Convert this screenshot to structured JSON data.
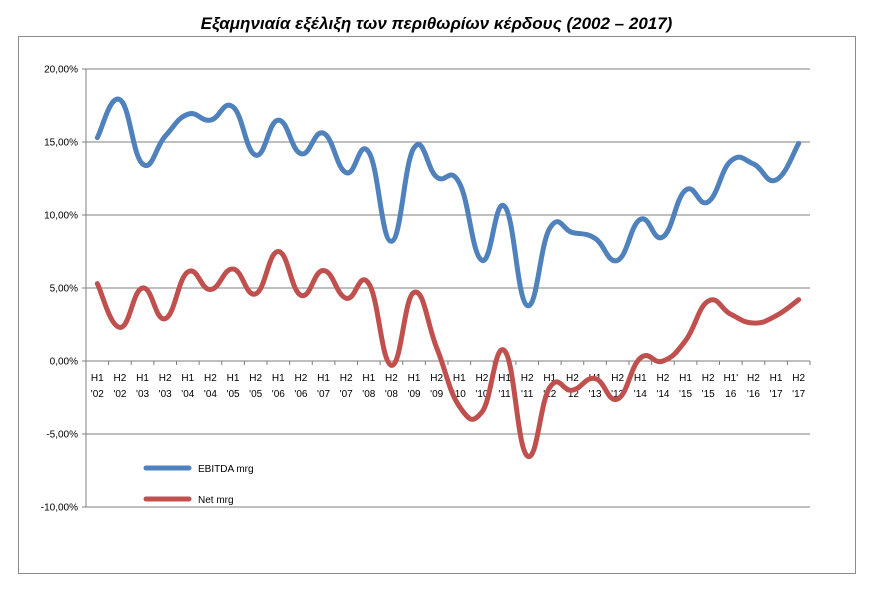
{
  "chart_data": {
    "type": "line",
    "title": "Εξαμηνιαία εξέλιξη των περιθωρίων κέρδους (2002 – 2017)",
    "xlabel": "",
    "ylabel": "",
    "ylim": [
      -10,
      20
    ],
    "yticks": [
      {
        "value": 20,
        "label": "20,00%"
      },
      {
        "value": 15,
        "label": "15,00%"
      },
      {
        "value": 10,
        "label": "10,00%"
      },
      {
        "value": 5,
        "label": "5,00%"
      },
      {
        "value": 0,
        "label": "0,00%"
      },
      {
        "value": -5,
        "label": "-5,00%"
      },
      {
        "value": -10,
        "label": "-10,00%"
      }
    ],
    "grid": true,
    "legend_position": "bottom-left",
    "categories": [
      {
        "l1": "H1",
        "l2": "'02"
      },
      {
        "l1": "H2",
        "l2": "'02"
      },
      {
        "l1": "H1",
        "l2": "'03"
      },
      {
        "l1": "H2",
        "l2": "'03"
      },
      {
        "l1": "H1",
        "l2": "'04"
      },
      {
        "l1": "H2",
        "l2": "'04"
      },
      {
        "l1": "H1",
        "l2": "'05"
      },
      {
        "l1": "H2",
        "l2": "'05"
      },
      {
        "l1": "H1",
        "l2": "'06"
      },
      {
        "l1": "H2",
        "l2": "'06"
      },
      {
        "l1": "H1",
        "l2": "'07"
      },
      {
        "l1": "H2",
        "l2": "'07"
      },
      {
        "l1": "H1",
        "l2": "'08"
      },
      {
        "l1": "H2",
        "l2": "'08"
      },
      {
        "l1": "H1",
        "l2": "'09"
      },
      {
        "l1": "H2",
        "l2": "'09"
      },
      {
        "l1": "H1",
        "l2": "'10"
      },
      {
        "l1": "H2",
        "l2": "'10"
      },
      {
        "l1": "H1",
        "l2": "'11"
      },
      {
        "l1": "H2",
        "l2": "'11"
      },
      {
        "l1": "H1",
        "l2": "'12"
      },
      {
        "l1": "H2",
        "l2": "'12"
      },
      {
        "l1": "H1",
        "l2": "'13"
      },
      {
        "l1": "H2",
        "l2": "'13"
      },
      {
        "l1": "H1",
        "l2": "'14"
      },
      {
        "l1": "H2",
        "l2": "'14"
      },
      {
        "l1": "H1",
        "l2": "'15"
      },
      {
        "l1": "H2",
        "l2": "'15"
      },
      {
        "l1": "H1'",
        "l2": "16"
      },
      {
        "l1": "H2",
        "l2": "'16"
      },
      {
        "l1": "H1",
        "l2": "'17"
      },
      {
        "l1": "H2",
        "l2": "'17"
      }
    ],
    "series": [
      {
        "name": "EBITDA mrg",
        "color": "#4f81bd",
        "values": [
          15.3,
          17.9,
          13.5,
          15.4,
          16.9,
          16.5,
          17.4,
          14.1,
          16.5,
          14.2,
          15.6,
          12.9,
          14.3,
          8.2,
          14.6,
          12.6,
          12.2,
          6.9,
          10.6,
          3.8,
          9.1,
          8.8,
          8.4,
          6.9,
          9.7,
          8.5,
          11.7,
          10.9,
          13.7,
          13.5,
          12.4,
          14.9
        ]
      },
      {
        "name": "Net mrg",
        "color": "#c0504d",
        "values": [
          5.3,
          2.3,
          5.0,
          2.9,
          6.1,
          4.9,
          6.3,
          4.6,
          7.5,
          4.5,
          6.2,
          4.3,
          5.3,
          -0.3,
          4.7,
          0.9,
          -3.1,
          -3.5,
          0.7,
          -6.5,
          -1.8,
          -2.0,
          -1.2,
          -2.6,
          0.2,
          0.0,
          1.4,
          4.1,
          3.2,
          2.6,
          3.1,
          4.2
        ]
      }
    ]
  }
}
